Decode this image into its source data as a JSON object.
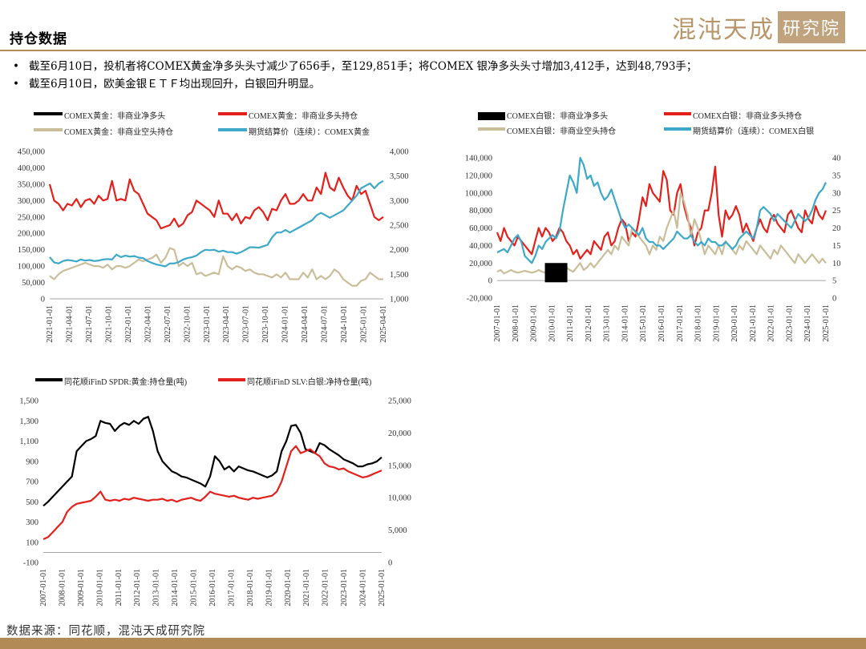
{
  "header": {
    "title": "持仓数据",
    "logo_script": "混沌天成",
    "logo_box": "研究院"
  },
  "bullets": [
    "截至6月10日，投机者将COMEX黄金净多头头寸减少了656手，至129,851手；将COMEX 银净多头头寸增加3,412手，达到48,793手；",
    "截至6月10日，欧美金银ＥＴＦ均出现回升，白银回升明显。"
  ],
  "source": "数据来源：同花顺，混沌天成研究院",
  "chart_data": [
    {
      "type": "line",
      "legend": [
        {
          "name": "COMEX黄金：非商业净多头",
          "color": "#000000"
        },
        {
          "name": "COMEX黄金：非商业多头持仓",
          "color": "#e3211c"
        },
        {
          "name": "COMEX黄金：非商业空头持仓",
          "color": "#c9bd9a"
        },
        {
          "name": "期货结算价（连续）：COMEX黄金",
          "color": "#3da8c8"
        }
      ],
      "ylim": [
        0,
        450000
      ],
      "yticks": [
        "0",
        "50,000",
        "100,000",
        "150,000",
        "200,000",
        "250,000",
        "300,000",
        "350,000",
        "400,000",
        "450,000"
      ],
      "y2lim": [
        1000,
        4000
      ],
      "y2ticks": [
        "1,000",
        "1,500",
        "2,000",
        "2,500",
        "3,000",
        "3,500",
        "4,000"
      ],
      "xticks": [
        "2021-01-01",
        "2021-04-01",
        "2021-07-01",
        "2021-10-01",
        "2022-01-01",
        "2022-04-01",
        "2022-07-01",
        "2022-10-01",
        "2023-01-01",
        "2023-04-01",
        "2023-07-01",
        "2023-10-01",
        "2024-01-01",
        "2024-04-01",
        "2024-07-01",
        "2024-10-01",
        "2025-01-01",
        "2025-04-01"
      ],
      "series": [
        {
          "name": "COMEX黄金：非商业多头持仓",
          "color": "#e3211c",
          "axis": "left",
          "values": [
            350000,
            300000,
            290000,
            270000,
            290000,
            285000,
            305000,
            280000,
            300000,
            305000,
            290000,
            315000,
            300000,
            305000,
            360000,
            300000,
            305000,
            300000,
            365000,
            330000,
            320000,
            290000,
            260000,
            250000,
            240000,
            215000,
            220000,
            225000,
            245000,
            220000,
            230000,
            255000,
            265000,
            300000,
            290000,
            280000,
            270000,
            250000,
            300000,
            260000,
            260000,
            240000,
            260000,
            230000,
            250000,
            245000,
            270000,
            280000,
            265000,
            240000,
            275000,
            270000,
            300000,
            320000,
            290000,
            290000,
            300000,
            320000,
            300000,
            300000,
            340000,
            320000,
            385000,
            340000,
            330000,
            370000,
            340000,
            315000,
            300000,
            345000,
            320000,
            330000,
            290000,
            250000,
            240000,
            250000
          ]
        },
        {
          "name": "COMEX黄金：非商业空头持仓",
          "color": "#c9bd9a",
          "axis": "left",
          "values": [
            70000,
            60000,
            75000,
            85000,
            90000,
            95000,
            100000,
            105000,
            110000,
            105000,
            100000,
            100000,
            95000,
            105000,
            90000,
            100000,
            100000,
            95000,
            100000,
            110000,
            120000,
            115000,
            120000,
            125000,
            135000,
            110000,
            125000,
            155000,
            150000,
            100000,
            110000,
            100000,
            110000,
            75000,
            80000,
            70000,
            75000,
            80000,
            75000,
            130000,
            100000,
            90000,
            100000,
            95000,
            85000,
            90000,
            80000,
            75000,
            75000,
            70000,
            65000,
            75000,
            65000,
            80000,
            60000,
            60000,
            60000,
            80000,
            65000,
            90000,
            60000,
            70000,
            60000,
            70000,
            90000,
            80000,
            60000,
            50000,
            40000,
            40000,
            55000,
            60000,
            80000,
            70000,
            60000,
            60000
          ]
        },
        {
          "name": "期货结算价（连续）：COMEX黄金",
          "color": "#3da8c8",
          "axis": "right",
          "values": [
            1850,
            1740,
            1720,
            1770,
            1790,
            1780,
            1760,
            1800,
            1780,
            1790,
            1770,
            1780,
            1800,
            1810,
            1800,
            1900,
            1850,
            1880,
            1860,
            1870,
            1840,
            1830,
            1770,
            1730,
            1700,
            1680,
            1660,
            1720,
            1720,
            1750,
            1800,
            1830,
            1850,
            1880,
            1950,
            2000,
            1990,
            2000,
            1960,
            1980,
            1950,
            1950,
            1920,
            1950,
            2000,
            2050,
            2050,
            2040,
            2070,
            2100,
            2250,
            2350,
            2350,
            2400,
            2350,
            2400,
            2450,
            2500,
            2550,
            2600,
            2700,
            2750,
            2700,
            2650,
            2700,
            2750,
            2800,
            2900,
            3000,
            3100,
            3250,
            3300,
            3350,
            3250,
            3350,
            3400
          ]
        }
      ]
    },
    {
      "type": "line",
      "legend": [
        {
          "name": "COMEX白银：非商业净多头",
          "color": "#000000"
        },
        {
          "name": "COMEX白银：非商业多头持仓",
          "color": "#e3211c"
        },
        {
          "name": "COMEX白银：非商业空头持仓",
          "color": "#c9bd9a"
        },
        {
          "name": "期货结算价（连续）：COMEX白银",
          "color": "#3da8c8"
        }
      ],
      "ylim": [
        -20000,
        140000
      ],
      "yticks": [
        "-20,000",
        "0",
        "20,000",
        "40,000",
        "60,000",
        "80,000",
        "100,000",
        "120,000",
        "140,000"
      ],
      "y2lim": [
        0,
        40
      ],
      "y2ticks": [
        "0",
        "5",
        "10",
        "15",
        "20",
        "25",
        "30",
        "35",
        "40"
      ],
      "xticks": [
        "2007-01-01",
        "2008-01-01",
        "2009-01-01",
        "2010-01-01",
        "2011-01-01",
        "2012-01-01",
        "2013-01-01",
        "2014-01-01",
        "2015-01-01",
        "2016-01-01",
        "2017-01-01",
        "2018-01-01",
        "2019-01-01",
        "2020-01-01",
        "2021-01-01",
        "2022-01-01",
        "2023-01-01",
        "2024-01-01",
        "2025-01-01"
      ],
      "series": [
        {
          "name": "COMEX白银：非商业净多头",
          "color": "#000000",
          "axis": "left",
          "values": [
            null,
            null,
            null,
            null,
            null,
            null,
            null,
            null,
            null,
            null,
            null,
            null,
            null,
            null,
            null,
            null,
            null,
            null,
            null,
            null,
            null,
            null,
            null,
            null,
            null,
            null,
            null,
            null,
            null,
            null,
            null,
            null,
            null,
            null,
            null,
            null,
            null,
            null,
            null,
            null,
            null,
            null,
            null,
            null,
            null,
            null,
            null,
            null,
            null,
            null,
            null,
            null,
            null,
            null,
            null,
            null,
            null,
            null,
            null,
            null,
            null,
            null,
            null,
            null,
            null,
            null,
            null,
            null,
            null,
            null,
            null,
            null,
            null,
            null,
            null,
            null,
            null,
            null,
            null,
            null,
            null,
            null,
            null,
            null,
            null,
            null,
            null,
            null,
            null,
            null,
            null,
            null,
            null,
            null,
            null,
            null
          ]
        },
        {
          "name": "COMEX白银：非商业多头持仓",
          "color": "#e3211c",
          "axis": "left",
          "values": [
            55000,
            45000,
            60000,
            50000,
            45000,
            40000,
            50000,
            45000,
            40000,
            35000,
            30000,
            45000,
            60000,
            50000,
            60000,
            55000,
            45000,
            50000,
            60000,
            55000,
            45000,
            40000,
            30000,
            35000,
            25000,
            30000,
            35000,
            30000,
            45000,
            40000,
            35000,
            50000,
            55000,
            40000,
            45000,
            60000,
            70000,
            65000,
            45000,
            55000,
            50000,
            70000,
            95000,
            85000,
            110000,
            100000,
            95000,
            90000,
            125000,
            115000,
            80000,
            75000,
            100000,
            110000,
            85000,
            70000,
            60000,
            40000,
            55000,
            60000,
            80000,
            80000,
            100000,
            130000,
            75000,
            50000,
            80000,
            70000,
            75000,
            85000,
            75000,
            55000,
            65000,
            55000,
            45000,
            60000,
            70000,
            60000,
            55000,
            70000,
            75000,
            65000,
            60000,
            55000,
            75000,
            80000,
            70000,
            60000,
            55000,
            80000,
            70000,
            65000,
            85000,
            75000,
            70000,
            80000
          ]
        },
        {
          "name": "COMEX白银：非商业空头持仓",
          "color": "#c9bd9a",
          "axis": "left",
          "values": [
            10000,
            12000,
            8000,
            10000,
            12000,
            10000,
            9000,
            10000,
            11000,
            10000,
            9000,
            10000,
            12000,
            10000,
            9000,
            10000,
            11000,
            10000,
            12000,
            10000,
            15000,
            12000,
            10000,
            15000,
            20000,
            12000,
            15000,
            20000,
            15000,
            20000,
            25000,
            30000,
            35000,
            30000,
            40000,
            35000,
            50000,
            45000,
            40000,
            60000,
            55000,
            50000,
            45000,
            40000,
            30000,
            40000,
            35000,
            50000,
            45000,
            60000,
            70000,
            80000,
            60000,
            100000,
            90000,
            75000,
            50000,
            70000,
            60000,
            45000,
            30000,
            40000,
            35000,
            30000,
            40000,
            30000,
            45000,
            40000,
            35000,
            30000,
            40000,
            35000,
            45000,
            40000,
            35000,
            30000,
            40000,
            35000,
            30000,
            25000,
            35000,
            30000,
            40000,
            35000,
            30000,
            25000,
            20000,
            30000,
            25000,
            20000,
            25000,
            30000,
            25000,
            20000,
            25000,
            20000
          ]
        },
        {
          "name": "期货结算价（连续）：COMEX白银",
          "color": "#3da8c8",
          "axis": "right",
          "values": [
            13,
            13.5,
            14,
            13,
            15,
            17,
            18,
            16,
            12,
            11,
            10,
            12,
            15,
            14,
            16,
            17,
            18,
            17,
            19,
            25,
            30,
            35,
            33,
            30,
            40,
            38,
            34,
            35,
            32,
            33,
            30,
            28,
            29,
            31,
            28,
            25,
            22,
            20,
            21,
            20,
            19,
            18,
            20,
            17,
            16,
            16,
            15,
            15,
            14,
            15,
            16,
            17,
            19,
            18,
            17,
            17,
            18,
            16,
            15,
            16,
            15,
            17,
            16,
            16,
            15,
            15,
            16,
            15,
            14,
            15,
            17,
            18,
            19,
            18,
            17,
            20,
            25,
            26,
            25,
            24,
            22,
            24,
            23,
            22,
            21,
            20,
            22,
            24,
            23,
            22,
            23,
            25,
            28,
            30,
            31,
            33
          ]
        }
      ]
    },
    {
      "type": "line",
      "legend": [
        {
          "name": "同花顺iFinD SPDR:黄金:持仓量(吨)",
          "color": "#000000"
        },
        {
          "name": "同花顺iFinD SLV:白银:净持仓量(吨)",
          "color": "#e3211c"
        }
      ],
      "ylim": [
        -100,
        1500
      ],
      "yticks": [
        "-100",
        "100",
        "300",
        "500",
        "700",
        "900",
        "1,100",
        "1,300",
        "1,500"
      ],
      "y2lim": [
        0,
        25000
      ],
      "y2ticks": [
        "0",
        "5,000",
        "10,000",
        "15,000",
        "20,000",
        "25,000"
      ],
      "xticks": [
        "2007-01-01",
        "2008-01-01",
        "2009-01-01",
        "2010-01-01",
        "2011-01-01",
        "2012-01-01",
        "2013-01-01",
        "2014-01-01",
        "2015-01-01",
        "2016-01-01",
        "2017-01-01",
        "2018-01-01",
        "2019-01-01",
        "2020-01-01",
        "2021-01-01",
        "2022-01-01",
        "2023-01-01",
        "2024-01-01",
        "2025-01-01"
      ],
      "series": [
        {
          "name": "同花顺iFinD SPDR:黄金:持仓量(吨)",
          "color": "#000000",
          "axis": "left",
          "values": [
            460,
            500,
            550,
            600,
            650,
            700,
            750,
            1000,
            1050,
            1100,
            1120,
            1150,
            1300,
            1280,
            1270,
            1200,
            1250,
            1280,
            1260,
            1300,
            1270,
            1320,
            1340,
            1200,
            1000,
            900,
            850,
            800,
            780,
            750,
            740,
            720,
            700,
            680,
            650,
            750,
            950,
            900,
            820,
            850,
            800,
            850,
            830,
            810,
            800,
            780,
            760,
            740,
            760,
            800,
            1000,
            1100,
            1250,
            1260,
            1180,
            1020,
            1000,
            980,
            1080,
            1060,
            1020,
            990,
            960,
            920,
            900,
            880,
            850,
            850,
            870,
            880,
            900,
            940
          ]
        },
        {
          "name": "同花顺iFinD SLV:白银:净持仓量(吨)",
          "color": "#e3211c",
          "axis": "left",
          "values": [
            130,
            150,
            200,
            250,
            300,
            400,
            450,
            480,
            490,
            500,
            510,
            550,
            600,
            520,
            510,
            520,
            510,
            530,
            520,
            540,
            530,
            520,
            510,
            520,
            520,
            530,
            510,
            520,
            500,
            520,
            530,
            540,
            520,
            510,
            550,
            600,
            580,
            570,
            560,
            550,
            560,
            540,
            530,
            520,
            540,
            530,
            540,
            550,
            560,
            600,
            700,
            850,
            1000,
            1050,
            980,
            1000,
            1020,
            980,
            950,
            880,
            850,
            840,
            820,
            830,
            800,
            780,
            760,
            740,
            750,
            770,
            790,
            810
          ]
        }
      ]
    }
  ]
}
